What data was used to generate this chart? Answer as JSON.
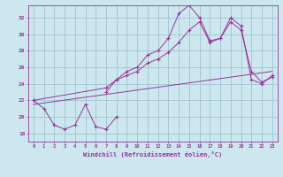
{
  "xlabel": "Windchill (Refroidissement éolien,°C)",
  "bg_color": "#cce8ee",
  "line_color": "#993399",
  "grid_color": "#99bbcc",
  "xlim": [
    -0.5,
    23.5
  ],
  "ylim": [
    17.0,
    33.5
  ],
  "yticks": [
    18,
    20,
    22,
    24,
    26,
    28,
    30,
    32
  ],
  "xticks": [
    0,
    1,
    2,
    3,
    4,
    5,
    6,
    7,
    8,
    9,
    10,
    11,
    12,
    13,
    14,
    15,
    16,
    17,
    18,
    19,
    20,
    21,
    22,
    23
  ],
  "series1_x": [
    0,
    1,
    2,
    3,
    4,
    5,
    6,
    7,
    8
  ],
  "series1_y": [
    22.0,
    21.0,
    19.0,
    18.5,
    19.0,
    21.5,
    18.8,
    18.5,
    20.0
  ],
  "series2_x": [
    7,
    8,
    9,
    10,
    11,
    12,
    13,
    14,
    15,
    16,
    17,
    18,
    19,
    20,
    21,
    22,
    23
  ],
  "series2_y": [
    23.0,
    24.5,
    25.5,
    26.0,
    27.5,
    28.0,
    29.5,
    32.5,
    33.5,
    32.0,
    29.2,
    29.5,
    32.0,
    31.0,
    24.5,
    24.0,
    25.0
  ],
  "series3_x": [
    0,
    7,
    8,
    9,
    10,
    11,
    12,
    13,
    14,
    15,
    16,
    17,
    18,
    19,
    20,
    21,
    22,
    23
  ],
  "series3_y": [
    22.0,
    23.5,
    24.5,
    25.0,
    25.5,
    26.5,
    27.0,
    27.8,
    29.0,
    30.5,
    31.5,
    29.0,
    29.5,
    31.5,
    30.5,
    25.5,
    24.2,
    24.8
  ],
  "series4_x": [
    0,
    23
  ],
  "series4_y": [
    21.5,
    25.5
  ]
}
